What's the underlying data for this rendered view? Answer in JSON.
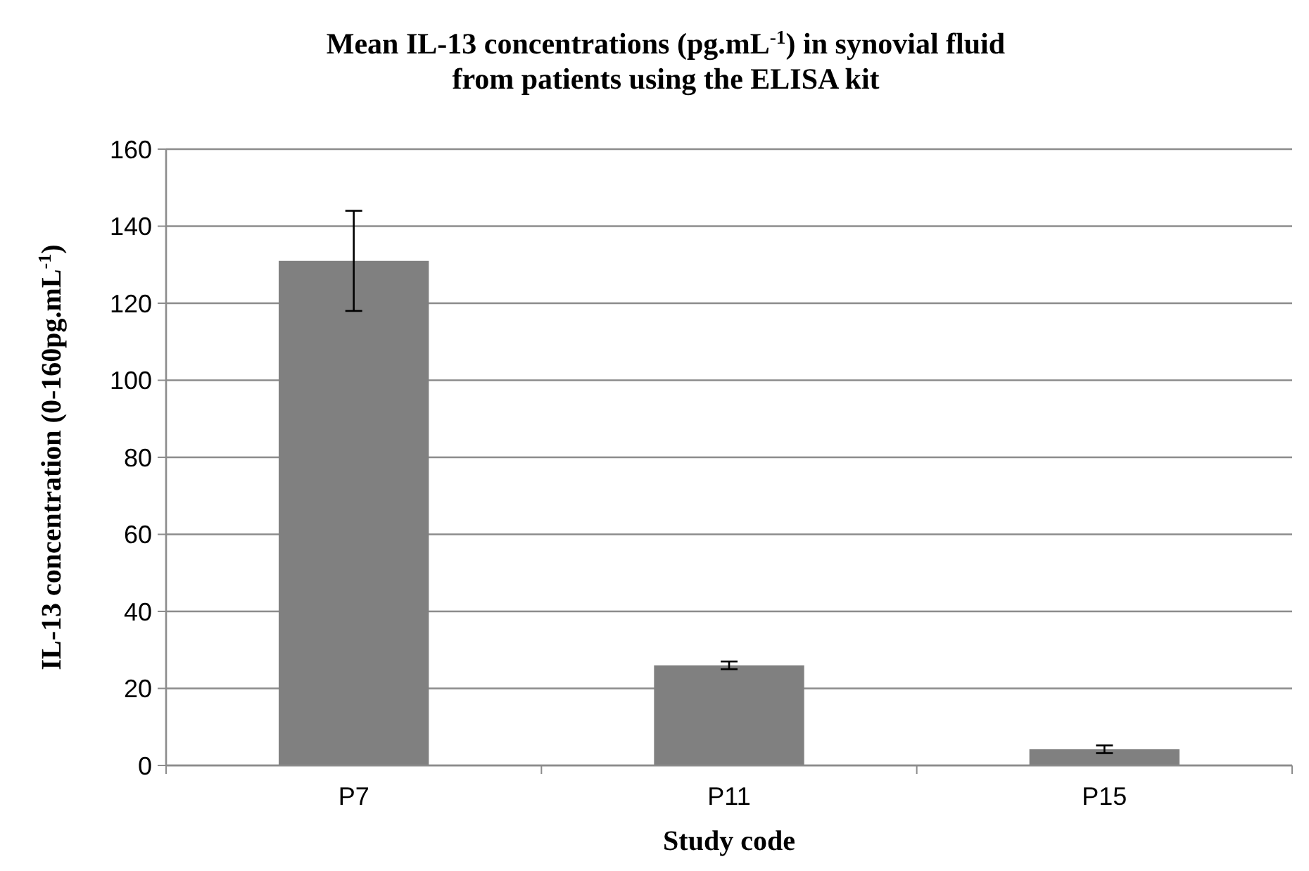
{
  "chart_data": {
    "type": "bar",
    "title": "Mean IL-13 concentrations (pg.mL$^{-1}$) in synovial fluid\nfrom patients using the ELISA kit",
    "xlabel": "Study code",
    "ylabel": "IL-13 concentration (0-160pg.mL$^{-1}$)",
    "categories": [
      "P7",
      "P11",
      "P15"
    ],
    "values": [
      131,
      26,
      4.2
    ],
    "errors": [
      13,
      1,
      1
    ],
    "color": "#808080",
    "ylim": [
      0,
      160
    ],
    "yticks": [
      0,
      20,
      40,
      60,
      80,
      100,
      120,
      140,
      160
    ],
    "grid": "y"
  }
}
